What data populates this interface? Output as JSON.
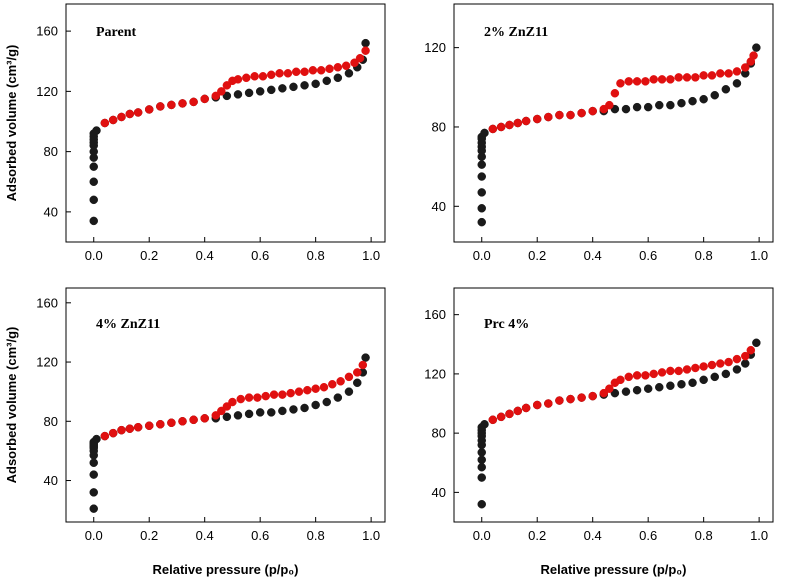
{
  "colors": {
    "adsorption": "#1a1a1a",
    "desorption": "#e01010",
    "axis": "#000000"
  },
  "chart_data": [
    {
      "type": "scatter",
      "title": "Parent",
      "xlabel": "",
      "ylabel": "Adsorbed volume (cm³/g)",
      "xlim": [
        -0.1,
        1.05
      ],
      "ylim": [
        20,
        178
      ],
      "xticks": [
        "0.0",
        "0.2",
        "0.4",
        "0.6",
        "0.8",
        "1.0"
      ],
      "yticks": [
        "40",
        "80",
        "120",
        "160"
      ],
      "series": [
        {
          "x": [
            0,
            0,
            0,
            0,
            0,
            0,
            0,
            0,
            0,
            0,
            0,
            0.01,
            0.04,
            0.07,
            0.1,
            0.13,
            0.16,
            0.2,
            0.24,
            0.28,
            0.32,
            0.36,
            0.4,
            0.44,
            0.48,
            0.52,
            0.56,
            0.6,
            0.64,
            0.68,
            0.72,
            0.76,
            0.8,
            0.84,
            0.88,
            0.92,
            0.95,
            0.97,
            0.98
          ],
          "y": [
            34,
            48,
            60,
            70,
            76,
            80,
            84,
            86,
            88,
            90,
            92,
            94,
            99,
            101,
            103,
            105,
            106,
            108,
            110,
            111,
            112,
            113,
            115,
            116,
            117,
            118,
            119,
            120,
            121,
            122,
            123,
            124,
            125,
            127,
            129,
            132,
            136,
            141,
            152
          ]
        },
        {
          "x": [
            0.04,
            0.07,
            0.1,
            0.13,
            0.16,
            0.2,
            0.24,
            0.28,
            0.32,
            0.36,
            0.4,
            0.44,
            0.46,
            0.48,
            0.5,
            0.52,
            0.55,
            0.58,
            0.61,
            0.64,
            0.67,
            0.7,
            0.73,
            0.76,
            0.79,
            0.82,
            0.85,
            0.88,
            0.91,
            0.94,
            0.96,
            0.98
          ],
          "y": [
            99,
            101,
            103,
            105,
            106,
            108,
            110,
            111,
            112,
            113,
            115,
            117,
            120,
            124,
            127,
            128,
            129,
            130,
            130,
            131,
            132,
            132,
            133,
            133,
            134,
            134,
            135,
            136,
            137,
            139,
            142,
            147
          ]
        }
      ]
    },
    {
      "type": "scatter",
      "title": "2% ZnZ11",
      "xlabel": "",
      "ylabel": "",
      "xlim": [
        -0.1,
        1.05
      ],
      "ylim": [
        22,
        142
      ],
      "xticks": [
        "0.0",
        "0.2",
        "0.4",
        "0.6",
        "0.8",
        "1.0"
      ],
      "yticks": [
        "40",
        "80",
        "120"
      ],
      "series": [
        {
          "x": [
            0,
            0,
            0,
            0,
            0,
            0,
            0,
            0,
            0,
            0,
            0,
            0.01,
            0.04,
            0.07,
            0.1,
            0.13,
            0.16,
            0.2,
            0.24,
            0.28,
            0.32,
            0.36,
            0.4,
            0.44,
            0.48,
            0.52,
            0.56,
            0.6,
            0.64,
            0.68,
            0.72,
            0.76,
            0.8,
            0.84,
            0.88,
            0.92,
            0.95,
            0.97,
            0.99
          ],
          "y": [
            32,
            39,
            47,
            55,
            61,
            65,
            68,
            70,
            72,
            74,
            75,
            77,
            79,
            80,
            81,
            82,
            83,
            84,
            85,
            86,
            86,
            87,
            88,
            88,
            89,
            89,
            90,
            90,
            91,
            91,
            92,
            93,
            94,
            96,
            99,
            102,
            107,
            112,
            120
          ]
        },
        {
          "x": [
            0.04,
            0.07,
            0.1,
            0.13,
            0.16,
            0.2,
            0.24,
            0.28,
            0.32,
            0.36,
            0.4,
            0.44,
            0.46,
            0.48,
            0.5,
            0.53,
            0.56,
            0.59,
            0.62,
            0.65,
            0.68,
            0.71,
            0.74,
            0.77,
            0.8,
            0.83,
            0.86,
            0.89,
            0.92,
            0.95,
            0.97,
            0.98
          ],
          "y": [
            79,
            80,
            81,
            82,
            83,
            84,
            85,
            86,
            86,
            87,
            88,
            89,
            91,
            97,
            102,
            103,
            103,
            103,
            104,
            104,
            104,
            105,
            105,
            105,
            106,
            106,
            107,
            107,
            108,
            110,
            113,
            116
          ]
        }
      ]
    },
    {
      "type": "scatter",
      "title": "4% ZnZ11",
      "xlabel": "Relative pressure (p/p₀)",
      "ylabel": "Adsorbed volume (cm³/g)",
      "xlim": [
        -0.1,
        1.05
      ],
      "ylim": [
        12,
        170
      ],
      "xticks": [
        "0.0",
        "0.2",
        "0.4",
        "0.6",
        "0.8",
        "1.0"
      ],
      "yticks": [
        "40",
        "80",
        "120",
        "160"
      ],
      "series": [
        {
          "x": [
            0,
            0,
            0,
            0,
            0,
            0,
            0,
            0,
            0,
            0,
            0,
            0.01,
            0.04,
            0.07,
            0.1,
            0.13,
            0.16,
            0.2,
            0.24,
            0.28,
            0.32,
            0.36,
            0.4,
            0.44,
            0.48,
            0.52,
            0.56,
            0.6,
            0.64,
            0.68,
            0.72,
            0.76,
            0.8,
            0.84,
            0.88,
            0.92,
            0.95,
            0.97,
            0.98
          ],
          "y": [
            21,
            32,
            44,
            52,
            57,
            60,
            62,
            63,
            64,
            65,
            66,
            68,
            70,
            72,
            74,
            75,
            76,
            77,
            78,
            79,
            80,
            81,
            82,
            82,
            83,
            84,
            85,
            86,
            86,
            87,
            88,
            89,
            91,
            93,
            96,
            100,
            106,
            113,
            123
          ]
        },
        {
          "x": [
            0.04,
            0.07,
            0.1,
            0.13,
            0.16,
            0.2,
            0.24,
            0.28,
            0.32,
            0.36,
            0.4,
            0.44,
            0.46,
            0.48,
            0.5,
            0.53,
            0.56,
            0.59,
            0.62,
            0.65,
            0.68,
            0.71,
            0.74,
            0.77,
            0.8,
            0.83,
            0.86,
            0.89,
            0.92,
            0.95,
            0.97
          ],
          "y": [
            70,
            72,
            74,
            75,
            76,
            77,
            78,
            79,
            80,
            81,
            82,
            84,
            87,
            90,
            93,
            95,
            96,
            96,
            97,
            98,
            98,
            99,
            100,
            101,
            102,
            103,
            105,
            107,
            110,
            113,
            118
          ]
        }
      ]
    },
    {
      "type": "scatter",
      "title": "Prc 4%",
      "xlabel": "Relative pressure (p/p₀)",
      "ylabel": "",
      "xlim": [
        -0.1,
        1.05
      ],
      "ylim": [
        20,
        178
      ],
      "xticks": [
        "0.0",
        "0.2",
        "0.4",
        "0.6",
        "0.8",
        "1.0"
      ],
      "yticks": [
        "40",
        "80",
        "120",
        "160"
      ],
      "series": [
        {
          "x": [
            0,
            0,
            0,
            0,
            0,
            0,
            0,
            0,
            0,
            0,
            0,
            0.01,
            0.04,
            0.07,
            0.1,
            0.13,
            0.16,
            0.2,
            0.24,
            0.28,
            0.32,
            0.36,
            0.4,
            0.44,
            0.48,
            0.52,
            0.56,
            0.6,
            0.64,
            0.68,
            0.72,
            0.76,
            0.8,
            0.84,
            0.88,
            0.92,
            0.95,
            0.97,
            0.99
          ],
          "y": [
            32,
            50,
            57,
            62,
            67,
            72,
            75,
            78,
            80,
            82,
            84,
            86,
            89,
            91,
            93,
            95,
            97,
            99,
            100,
            102,
            103,
            104,
            105,
            106,
            107,
            108,
            109,
            110,
            111,
            112,
            113,
            114,
            116,
            118,
            120,
            123,
            127,
            133,
            141
          ]
        },
        {
          "x": [
            0.04,
            0.07,
            0.1,
            0.13,
            0.16,
            0.2,
            0.24,
            0.28,
            0.32,
            0.36,
            0.4,
            0.44,
            0.46,
            0.48,
            0.5,
            0.53,
            0.56,
            0.59,
            0.62,
            0.65,
            0.68,
            0.71,
            0.74,
            0.77,
            0.8,
            0.83,
            0.86,
            0.89,
            0.92,
            0.95,
            0.97
          ],
          "y": [
            89,
            91,
            93,
            95,
            97,
            99,
            100,
            102,
            103,
            104,
            105,
            107,
            110,
            114,
            116,
            118,
            119,
            119,
            120,
            121,
            122,
            122,
            123,
            124,
            125,
            126,
            127,
            128,
            130,
            132,
            136
          ]
        }
      ]
    }
  ]
}
